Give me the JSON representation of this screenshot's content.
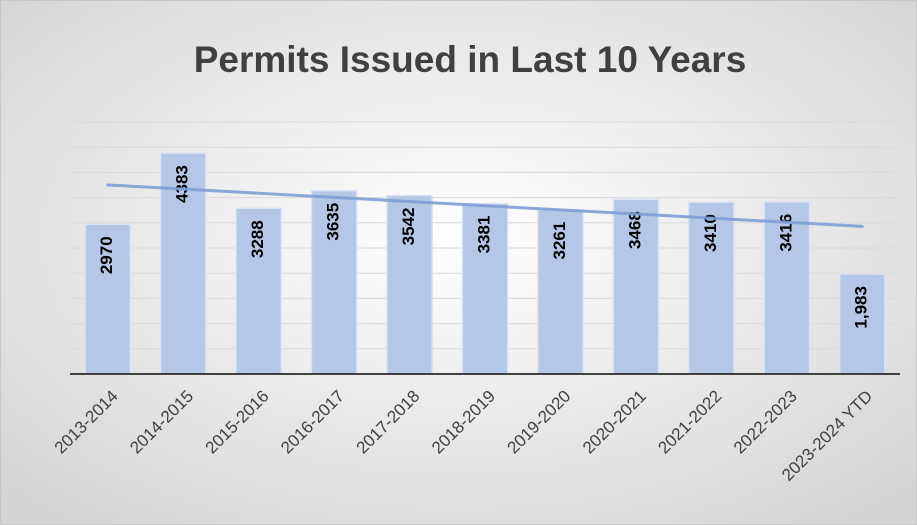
{
  "chart_data": {
    "type": "bar",
    "title": "Permits Issued in Last 10 Years",
    "categories": [
      "2013-2014",
      "2014-2015",
      "2015-2016",
      "2016-2017",
      "2017-2018",
      "2018-2019",
      "2019-2020",
      "2020-2021",
      "2021-2022",
      "2022-2023",
      "2023-2024 YTD"
    ],
    "values": [
      2970,
      4383,
      3288,
      3635,
      3542,
      3381,
      3261,
      3468,
      3410,
      3416,
      1983
    ],
    "value_labels": [
      "2970",
      "4383",
      "3288",
      "3635",
      "3542",
      "3381",
      "3261",
      "3468",
      "3410",
      "3416",
      "1,983"
    ],
    "color": "#b4c7e7",
    "trendline": true,
    "trendline_color": "#7f9fd6",
    "ylim": [
      0,
      5000
    ],
    "yticks": [
      0,
      500,
      1000,
      1500,
      2000,
      2500,
      3000,
      3500,
      4000,
      4500,
      5000
    ],
    "grid": true
  }
}
